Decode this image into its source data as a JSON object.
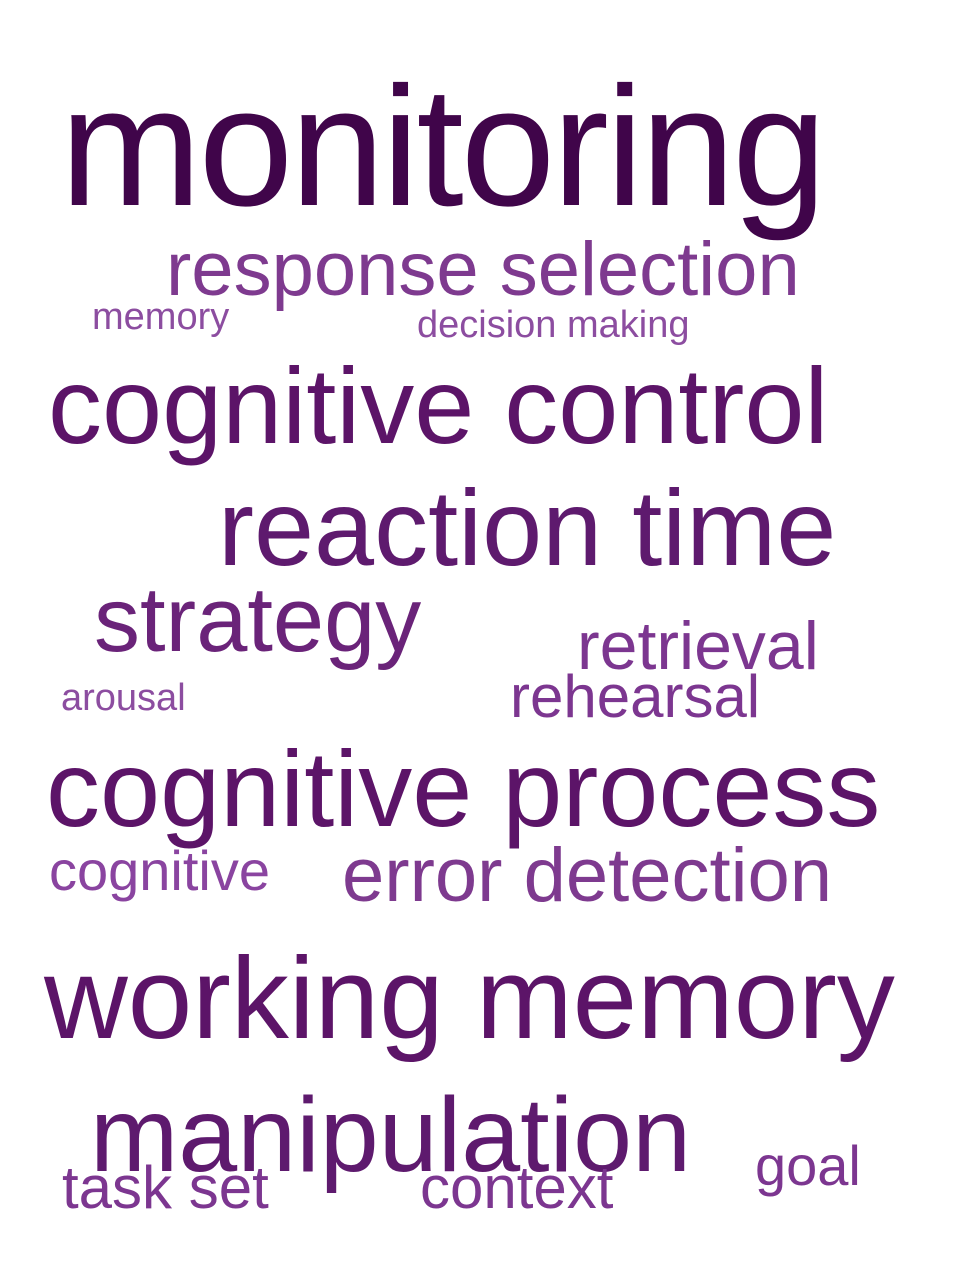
{
  "words": {
    "monitoring": {
      "text": "monitoring",
      "color": "#40054a"
    },
    "response_selection": {
      "text": "response selection",
      "color": "#7e3a8f"
    },
    "memory": {
      "text": "memory",
      "color": "#8c4da0"
    },
    "decision_making": {
      "text": "decision making",
      "color": "#8c4da0"
    },
    "cognitive_control": {
      "text": "cognitive control",
      "color": "#5c1468"
    },
    "reaction_time": {
      "text": "reaction time",
      "color": "#5e1a6e"
    },
    "strategy": {
      "text": "strategy",
      "color": "#6a2379"
    },
    "retrieval": {
      "text": "retrieval",
      "color": "#7c3690"
    },
    "arousal": {
      "text": "arousal",
      "color": "#8c4da0"
    },
    "rehearsal": {
      "text": "rehearsal",
      "color": "#7c3690"
    },
    "cognitive_process": {
      "text": "cognitive process",
      "color": "#5c1468"
    },
    "cognitive": {
      "text": "cognitive",
      "color": "#8a44a0"
    },
    "error_detection": {
      "text": "error detection",
      "color": "#7e3a8f"
    },
    "working_memory": {
      "text": "working memory",
      "color": "#5c1468"
    },
    "manipulation": {
      "text": "manipulation",
      "color": "#5e1a6e"
    },
    "goal": {
      "text": "goal",
      "color": "#7c3690"
    },
    "task_set": {
      "text": "task set",
      "color": "#7c3690"
    },
    "context": {
      "text": "context",
      "color": "#7c3690"
    }
  }
}
